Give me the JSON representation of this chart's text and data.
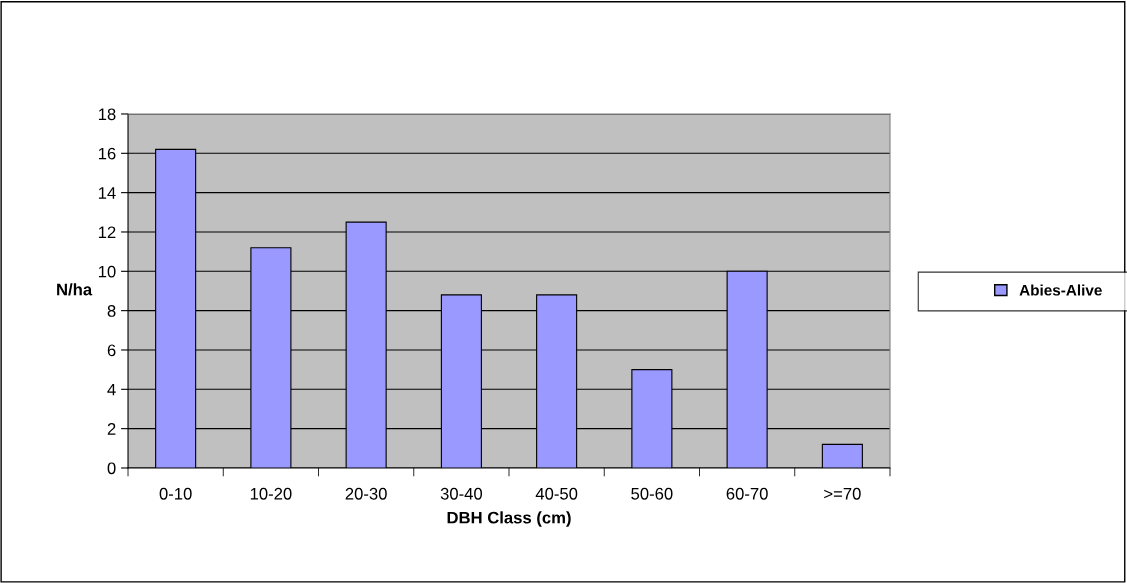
{
  "chart_data": {
    "type": "bar",
    "xlabel": "DBH Class (cm)",
    "ylabel": "N/ha",
    "categories": [
      "0-10",
      "10-20",
      "20-30",
      "30-40",
      "40-50",
      "50-60",
      "60-70",
      ">=70"
    ],
    "series": [
      {
        "name": "Abies-Alive",
        "color": "#9999ff",
        "values": [
          16.2,
          11.2,
          12.5,
          8.8,
          8.8,
          5,
          10,
          1.2
        ]
      }
    ],
    "ylim": [
      0,
      18
    ],
    "yticks": [
      0,
      2,
      4,
      6,
      8,
      10,
      12,
      14,
      16,
      18
    ],
    "grid": "y",
    "legend": "right"
  }
}
